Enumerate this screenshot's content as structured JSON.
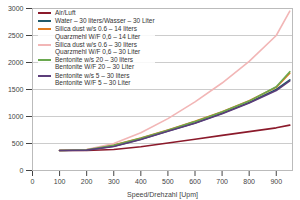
{
  "chart_data": {
    "type": "line",
    "x_label": "Speed/Drehzahl [Upm]",
    "x": [
      100,
      200,
      300,
      400,
      500,
      600,
      700,
      800,
      900,
      950
    ],
    "xlim": [
      0,
      960
    ],
    "xticks": [
      0,
      100,
      200,
      300,
      400,
      500,
      600,
      700,
      800,
      900
    ],
    "ylim": [
      0,
      3000
    ],
    "yticks": [
      0,
      500,
      1000,
      1500,
      2000,
      2500,
      3000
    ],
    "grid": true,
    "legend": "top-left",
    "series": [
      {
        "name": "Air/Luft",
        "color": "#8b1a2b",
        "values": [
          370,
          370,
          390,
          440,
          510,
          580,
          650,
          720,
          790,
          840
        ]
      },
      {
        "name": "Water – 30 liters/Wasser – 30 Liter",
        "color": "#1f5a6b",
        "values": [
          370,
          380,
          450,
          580,
          730,
          880,
          1060,
          1260,
          1500,
          1680
        ]
      },
      {
        "name": "Silica dust w/s 0.6 – 14 liters\nQuarzmehl W/F 0,6 – 14 Liter",
        "color": "#e07b20",
        "values": [
          370,
          385,
          470,
          600,
          750,
          910,
          1090,
          1290,
          1540,
          1800
        ]
      },
      {
        "name": "Silica dust w/s 0.6 – 30 liters\nQuarzmehl W/F 0,6 – 30 Liter",
        "color": "#f2b6b6",
        "values": [
          370,
          390,
          500,
          700,
          960,
          1270,
          1620,
          2020,
          2500,
          2950
        ]
      },
      {
        "name": "Bentonite w/s 20 – 30 liters\nBentonite W/F 20 – 30 Liter",
        "color": "#6aa84f",
        "values": [
          370,
          385,
          465,
          595,
          745,
          905,
          1085,
          1285,
          1550,
          1830
        ]
      },
      {
        "name": "Bentonite w/s 5 – 30 liters\nBentonite W/F 5 – 30 Liter",
        "color": "#5c3d7a",
        "values": [
          370,
          378,
          445,
          575,
          725,
          875,
          1050,
          1250,
          1480,
          1660
        ]
      }
    ]
  }
}
